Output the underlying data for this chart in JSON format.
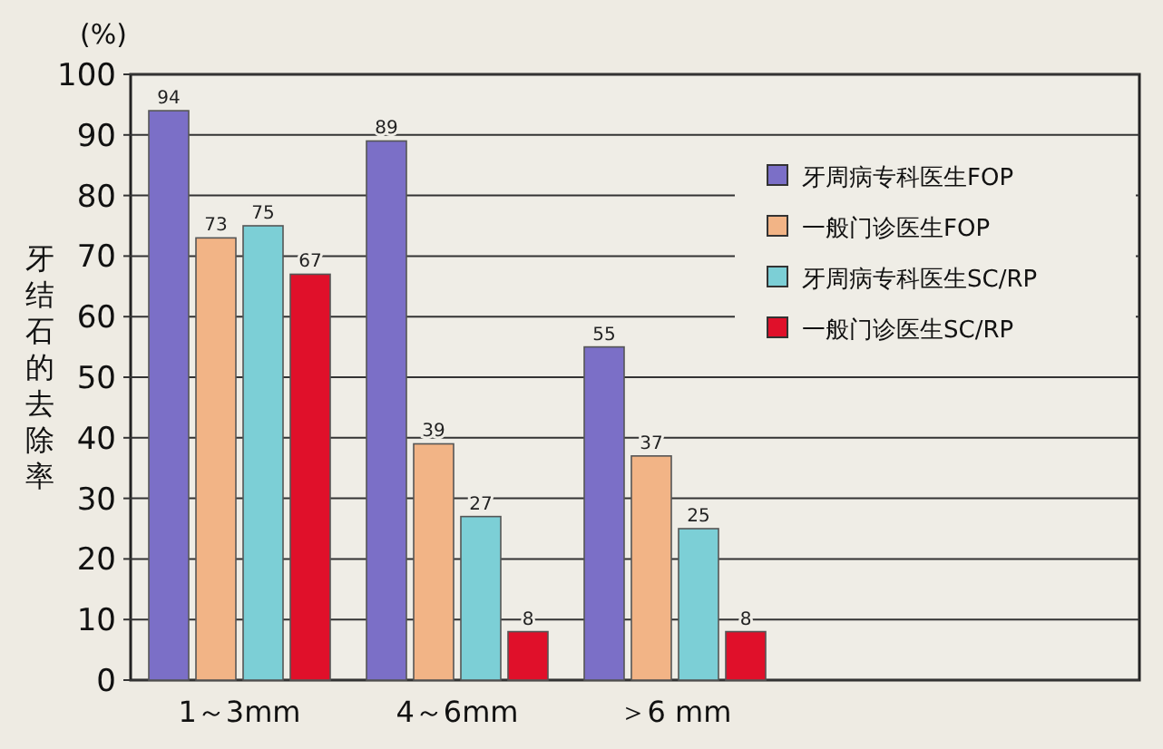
{
  "chart_data": {
    "type": "bar",
    "ylabel": "牙结石的去除率",
    "annotations": [
      "(%)"
    ],
    "categories": [
      "1～3mm",
      "4～6mm",
      "＞6 mm"
    ],
    "series": [
      {
        "name": "牙周病专科医生FOP",
        "color": "#7b6fc7",
        "values": [
          94,
          89,
          55
        ]
      },
      {
        "name": "一般门诊医生FOP",
        "color": "#f2b486",
        "values": [
          73,
          39,
          37
        ]
      },
      {
        "name": "牙周病专科医生SC/RP",
        "color": "#7ccfd6",
        "values": [
          75,
          27,
          25
        ]
      },
      {
        "name": "一般门诊医生SC/RP",
        "color": "#e0102a",
        "values": [
          67,
          8,
          8
        ]
      }
    ],
    "ylim": [
      0,
      100
    ],
    "yticks": [
      0,
      10,
      20,
      30,
      40,
      50,
      60,
      70,
      80,
      90,
      100
    ],
    "grid": "y",
    "legend": "right",
    "data_labels": true
  }
}
